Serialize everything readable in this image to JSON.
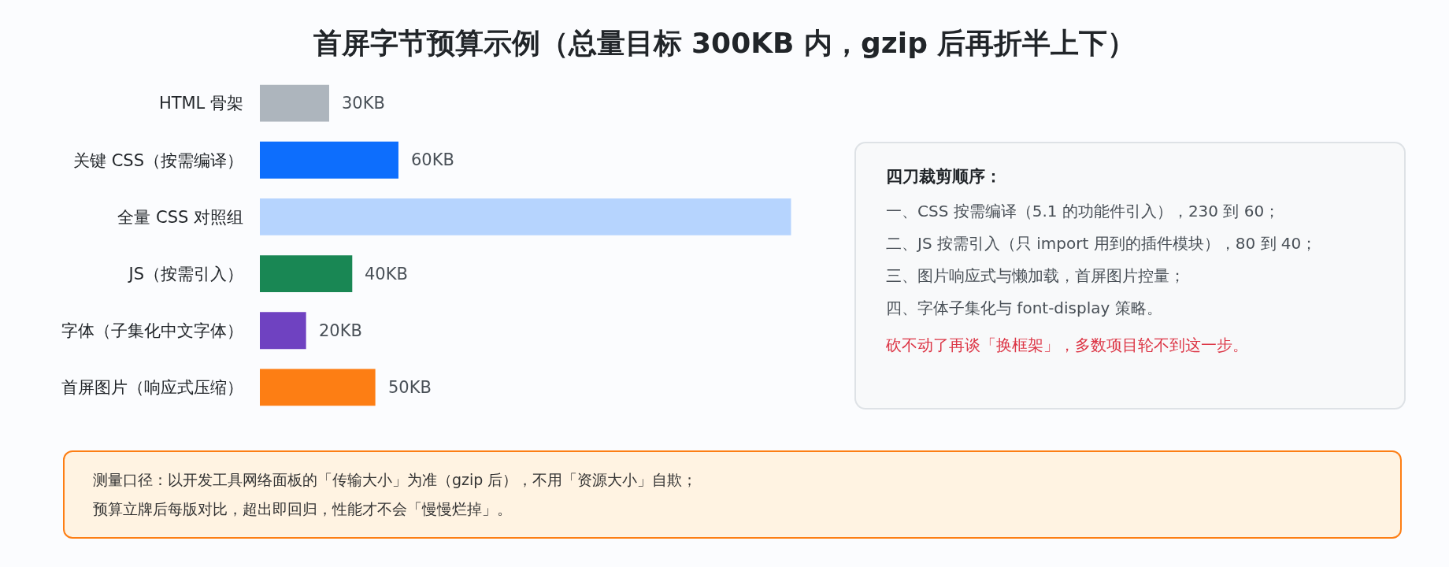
{
  "chart_data": [
    {
      "type": "bar",
      "title": "首屏字节预算示例（总量目标 300KB 内，gzip 后再折半上下）",
      "orientation": "horizontal",
      "categories": [
        "HTML 骨架",
        "关键 CSS（按需编译）",
        "全量 CSS 对照组",
        "JS（按需引入）",
        "字体（子集化中文字体）",
        "首屏图片（响应式压缩）"
      ],
      "values": [
        30,
        60,
        230,
        40,
        20,
        50
      ],
      "colors": [
        "#adb5bd",
        "#0d6efd",
        "#b6d4fe",
        "#198754",
        "#6f42c1",
        "#fd7e14"
      ],
      "value_labels": [
        "30KB",
        "60KB",
        null,
        "40KB",
        "20KB",
        "50KB"
      ],
      "tick_labels": "y"
    },
    {
      "type": "other",
      "title": "四刀裁剪顺序：",
      "annotations": [
        "一、CSS 按需编译（5.1 的功能件引入），230 到 60；",
        "二、JS 按需引入（只 import 用到的插件模块），80 到 40；",
        "三、图片响应式与懒加载，首屏图片控量；",
        "四、字体子集化与 font-display 策略。",
        "砍不动了再谈「换框架」，多数项目轮不到这一步。"
      ]
    },
    {
      "type": "other",
      "annotations": [
        "测量口径：以开发工具网络面板的「传输大小」为准（gzip 后），不用「资源大小」自欺；",
        "预算立牌后每版对比，超出即回归，性能才不会「慢慢烂掉」。"
      ]
    }
  ]
}
